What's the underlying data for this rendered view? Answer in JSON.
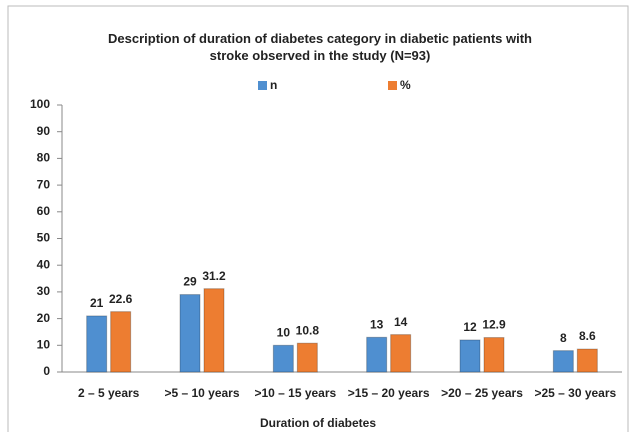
{
  "chart_data": {
    "type": "bar",
    "title": "Description of duration of diabetes category in diabetic patients with stroke observed in the study (N=93)",
    "x_label": "Duration of diabetes",
    "categories": [
      "2 – 5 years",
      ">5 – 10 years",
      ">10 – 15 years",
      ">15 – 20 years",
      ">20 – 25 years",
      ">25 – 30 years"
    ],
    "series": [
      {
        "name": "n",
        "color": "#4f8fd0",
        "values": [
          21,
          29,
          10,
          13,
          12,
          8
        ]
      },
      {
        "name": "%",
        "color": "#ed7d31",
        "values": [
          22.6,
          31.2,
          10.8,
          14,
          12.9,
          8.6
        ]
      }
    ],
    "ylim": [
      0,
      100
    ],
    "yticks": [
      0,
      10,
      20,
      30,
      40,
      50,
      60,
      70,
      80,
      90,
      100
    ],
    "grid": false,
    "legend": "top"
  }
}
